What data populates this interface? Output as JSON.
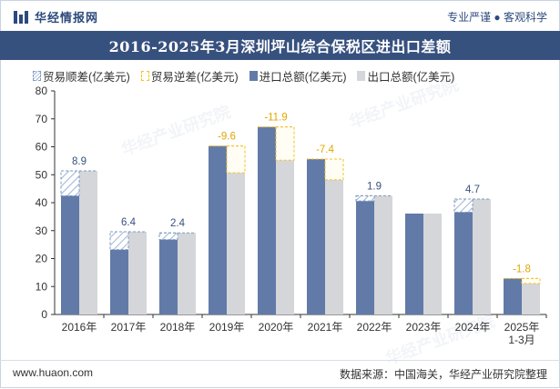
{
  "header": {
    "brand": "华经情报网",
    "tagline": "专业严谨 ● 客观科学"
  },
  "title": "2016-2025年3月深圳坪山综合保税区进出口差额",
  "legend": {
    "surplus": "贸易顺差(亿美元)",
    "deficit": "贸易逆差(亿美元)",
    "import": "进口总额(亿美元)",
    "export": "出口总额(亿美元)"
  },
  "footer": {
    "url": "www.huaon.com",
    "source": "数据来源：中国海关，华经产业研究院整理"
  },
  "watermark": "华经产业研究院",
  "colors": {
    "import": "#617aa8",
    "export": "#d4d6d9",
    "surplus_line": "#7f9bc2",
    "deficit_line": "#f3c229",
    "surplus_label": "#37517f",
    "deficit_label": "#e0a800"
  },
  "chart_data": {
    "type": "bar",
    "categories": [
      "2016年",
      "2017年",
      "2018年",
      "2019年",
      "2020年",
      "2021年",
      "2022年",
      "2023年",
      "2024年",
      "2025年\n1-3月"
    ],
    "series": [
      {
        "name": "进口总额(亿美元)",
        "values": [
          42.5,
          23.2,
          26.8,
          60.3,
          67.1,
          55.6,
          40.6,
          36.1,
          36.6,
          12.9
        ]
      },
      {
        "name": "出口总额(亿美元)",
        "values": [
          51.4,
          29.6,
          29.2,
          50.7,
          55.2,
          48.2,
          42.5,
          36.1,
          41.3,
          11.1
        ]
      }
    ],
    "balance": {
      "values": [
        8.9,
        6.4,
        2.4,
        -9.6,
        -11.9,
        -7.4,
        1.9,
        null,
        4.7,
        -1.8
      ],
      "labels": [
        "8.9",
        "6.4",
        "2.4",
        "-9.6",
        "-11.9",
        "-7.4",
        "1.9",
        "",
        "4.7",
        "-1.8"
      ]
    },
    "ylim": [
      0,
      80
    ],
    "yticks": [
      0,
      10,
      20,
      30,
      40,
      50,
      60,
      70,
      80
    ],
    "xlabel": "",
    "ylabel": ""
  }
}
